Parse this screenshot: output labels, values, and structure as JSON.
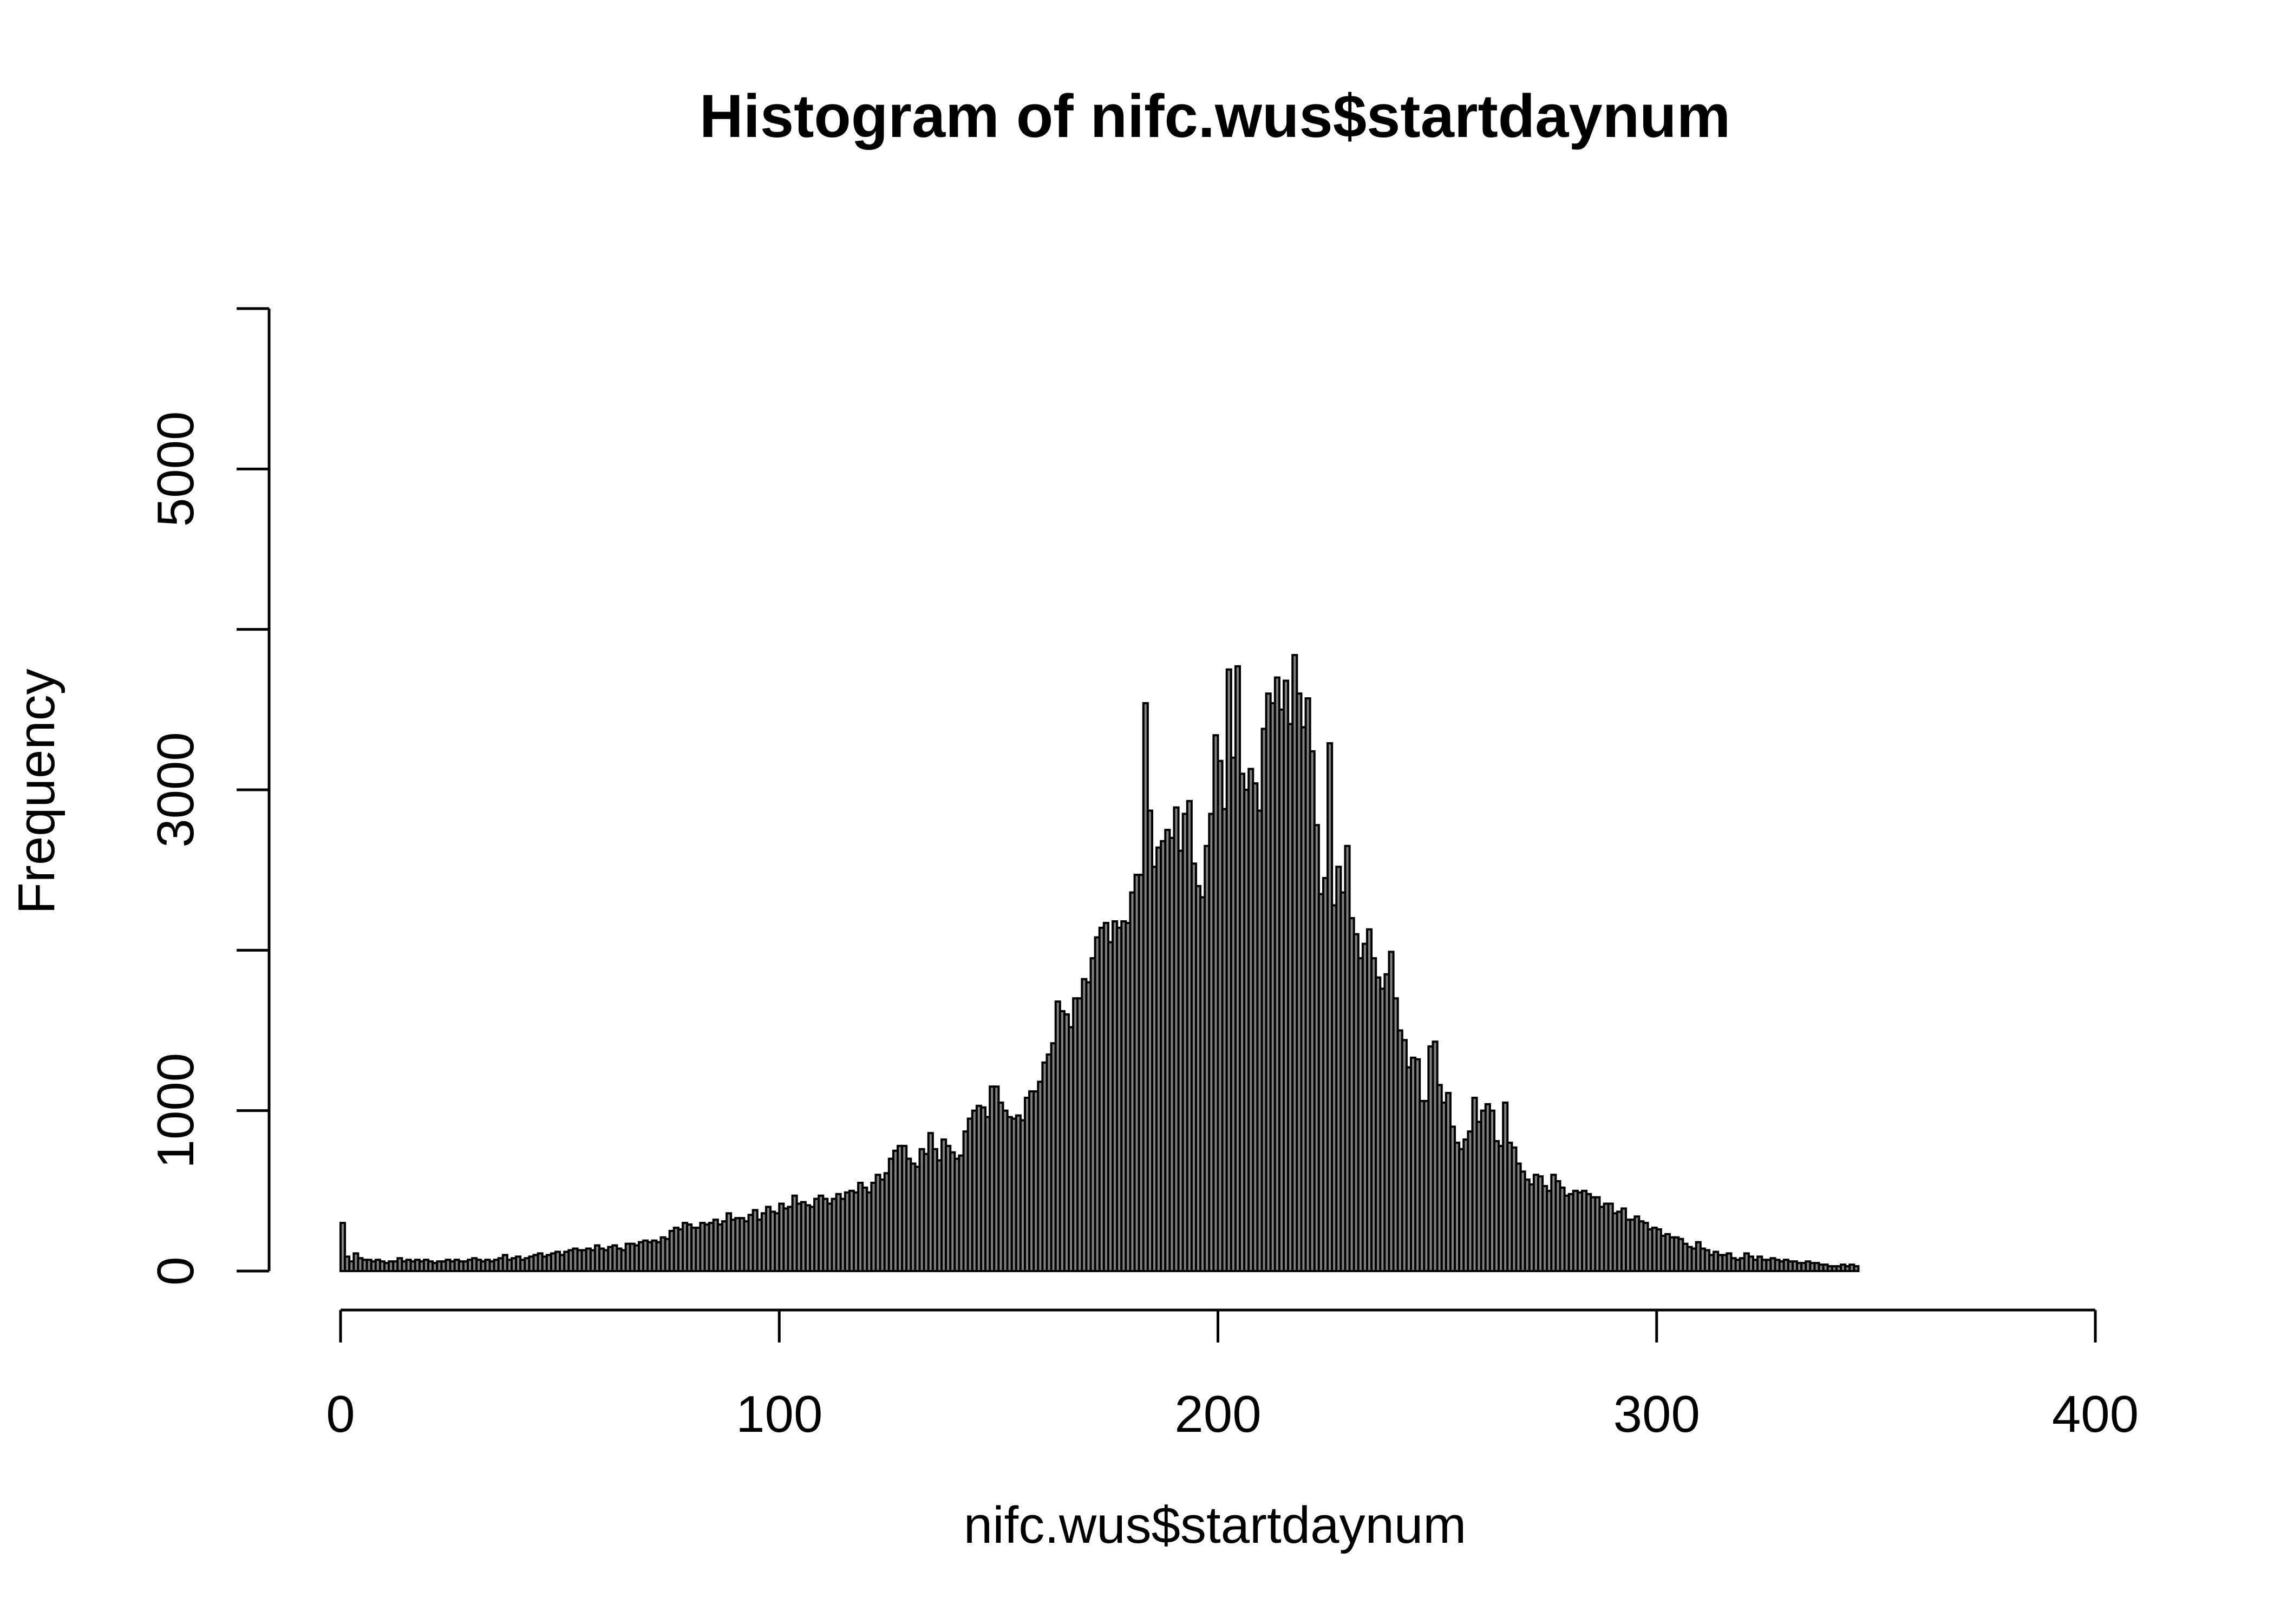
{
  "chart_data": {
    "type": "bar",
    "title": "Histogram of nifc.wus$startdaynum",
    "xlabel": "nifc.wus$startdaynum",
    "ylabel": "Frequency",
    "xlim": [
      0,
      400
    ],
    "ylim": [
      0,
      6000
    ],
    "x_ticks": [
      0,
      100,
      200,
      300,
      400
    ],
    "y_ticks": [
      0,
      1000,
      2000,
      3000,
      4000,
      5000,
      6000
    ],
    "y_tick_labels": [
      {
        "value": 0,
        "label": "0"
      },
      {
        "value": 1000,
        "label": "1000"
      },
      {
        "value": 3000,
        "label": "3000"
      },
      {
        "value": 5000,
        "label": "5000"
      }
    ],
    "bin_width": 1,
    "bins_start": 0,
    "values": [
      300,
      90,
      60,
      110,
      80,
      70,
      70,
      60,
      70,
      60,
      50,
      60,
      60,
      80,
      60,
      70,
      60,
      70,
      60,
      70,
      60,
      50,
      60,
      60,
      70,
      60,
      70,
      60,
      60,
      70,
      80,
      70,
      60,
      70,
      60,
      70,
      80,
      100,
      70,
      80,
      90,
      70,
      80,
      90,
      100,
      110,
      90,
      100,
      110,
      120,
      100,
      120,
      130,
      140,
      130,
      130,
      140,
      130,
      160,
      140,
      130,
      150,
      160,
      140,
      130,
      170,
      170,
      160,
      180,
      190,
      180,
      190,
      180,
      210,
      200,
      250,
      270,
      260,
      300,
      290,
      270,
      270,
      300,
      290,
      300,
      320,
      290,
      310,
      360,
      320,
      330,
      330,
      310,
      350,
      380,
      320,
      360,
      400,
      370,
      360,
      420,
      390,
      400,
      470,
      420,
      430,
      410,
      400,
      450,
      470,
      450,
      420,
      450,
      480,
      450,
      490,
      500,
      490,
      550,
      520,
      490,
      550,
      600,
      570,
      610,
      700,
      750,
      780,
      780,
      700,
      670,
      650,
      760,
      730,
      860,
      760,
      690,
      820,
      780,
      740,
      700,
      720,
      870,
      950,
      1000,
      1030,
      1020,
      960,
      1150,
      1150,
      1050,
      1000,
      960,
      950,
      970,
      940,
      1080,
      1120,
      1120,
      1180,
      1300,
      1350,
      1420,
      1680,
      1620,
      1600,
      1520,
      1700,
      1700,
      1820,
      1800,
      1950,
      2080,
      2140,
      2170,
      2050,
      2180,
      2140,
      2180,
      2170,
      2360,
      2470,
      2470,
      3540,
      2870,
      2520,
      2640,
      2680,
      2750,
      2700,
      2890,
      2620,
      2850,
      2930,
      2540,
      2400,
      2330,
      2650,
      2850,
      3340,
      3180,
      2880,
      3750,
      3200,
      3770,
      3100,
      3000,
      3130,
      3040,
      2870,
      3380,
      3600,
      3540,
      3700,
      3500,
      3680,
      3410,
      3840,
      3600,
      3390,
      3570,
      3240,
      2780,
      2350,
      2450,
      3290,
      2280,
      2520,
      2360,
      2650,
      2200,
      2100,
      1950,
      2040,
      2130,
      1950,
      1830,
      1760,
      1850,
      1990,
      1700,
      1500,
      1440,
      1270,
      1330,
      1320,
      1060,
      1060,
      1400,
      1430,
      1160,
      1050,
      1110,
      900,
      800,
      760,
      820,
      870,
      1080,
      930,
      1000,
      1040,
      1000,
      810,
      780,
      1050,
      800,
      770,
      670,
      620,
      570,
      540,
      600,
      590,
      530,
      500,
      600,
      560,
      520,
      470,
      480,
      500,
      490,
      500,
      480,
      460,
      460,
      400,
      420,
      420,
      360,
      370,
      390,
      320,
      320,
      340,
      310,
      300,
      260,
      270,
      260,
      220,
      230,
      210,
      210,
      200,
      170,
      150,
      140,
      180,
      140,
      130,
      100,
      120,
      100,
      100,
      110,
      80,
      70,
      80,
      110,
      90,
      70,
      90,
      70,
      70,
      80,
      70,
      60,
      70,
      60,
      60,
      50,
      50,
      60,
      50,
      50,
      40,
      40,
      30,
      30,
      30,
      40,
      30,
      40,
      30
    ]
  }
}
